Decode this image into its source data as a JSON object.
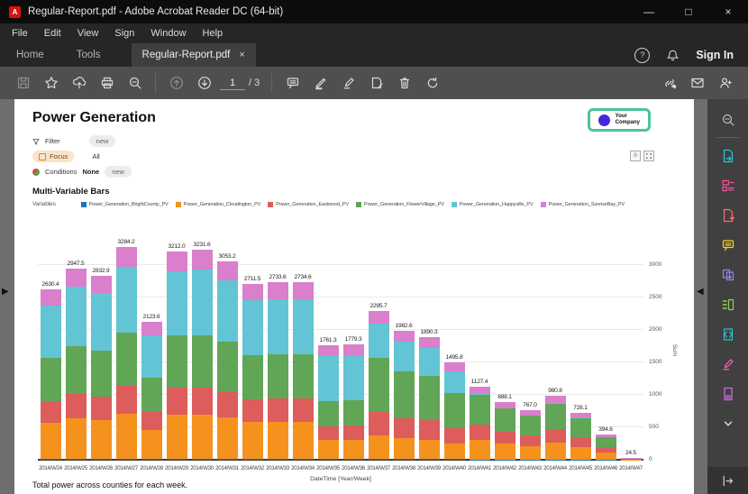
{
  "window": {
    "title": "Regular-Report.pdf - Adobe Acrobat Reader DC (64-bit)",
    "minimize": "—",
    "maximize": "□",
    "close": "×"
  },
  "menubar": {
    "items": [
      "File",
      "Edit",
      "View",
      "Sign",
      "Window",
      "Help"
    ]
  },
  "tabs": {
    "home": "Home",
    "tools": "Tools",
    "document": "Regular-Report.pdf",
    "close": "×"
  },
  "header": {
    "help": "?",
    "sign_in": "Sign In"
  },
  "toolbar": {
    "page_current": "1",
    "page_total": "/ 3",
    "left": [
      {
        "name": "save-button",
        "type": "save",
        "disabled": true
      },
      {
        "name": "favorite-button",
        "type": "star",
        "disabled": false
      },
      {
        "name": "share-upload-button",
        "type": "share",
        "disabled": false
      },
      {
        "name": "print-button",
        "type": "print",
        "disabled": false
      },
      {
        "name": "search-button",
        "type": "search",
        "disabled": false
      }
    ],
    "nav": [
      {
        "name": "previous-page-button",
        "type": "pageup",
        "disabled": true
      },
      {
        "name": "next-page-button",
        "type": "pagedown",
        "disabled": false
      }
    ],
    "annotate": [
      {
        "name": "comment-button",
        "type": "comment",
        "disabled": false
      },
      {
        "name": "highlight-button",
        "type": "highlight",
        "disabled": false
      },
      {
        "name": "fill-sign-button",
        "type": "sign",
        "disabled": false
      },
      {
        "name": "edit-page-button",
        "type": "editpage",
        "disabled": false
      },
      {
        "name": "delete-button",
        "type": "trash",
        "disabled": false
      },
      {
        "name": "rotate-button",
        "type": "rotate",
        "disabled": false
      }
    ],
    "right": [
      {
        "name": "share-link-button",
        "type": "link",
        "disabled": false
      },
      {
        "name": "email-button",
        "type": "email",
        "disabled": false
      },
      {
        "name": "profile-add-button",
        "type": "personadd",
        "disabled": false
      }
    ]
  },
  "sidebar": {
    "tools": [
      {
        "name": "search-tools-button",
        "type": "search",
        "color": "#bdbdbd"
      },
      {
        "name": "export-pdf-button",
        "type": "export",
        "color": "#26c6d8"
      },
      {
        "name": "edit-pdf-button",
        "type": "edit",
        "color": "#ff4fa0"
      },
      {
        "name": "create-pdf-button",
        "type": "create",
        "color": "#ff6b6b"
      },
      {
        "name": "comment-tool-button",
        "type": "comment",
        "color": "#f8d21c"
      },
      {
        "name": "combine-files-button",
        "type": "combine",
        "color": "#8f86f0"
      },
      {
        "name": "organize-pages-button",
        "type": "organize",
        "color": "#8fd14f"
      },
      {
        "name": "compress-pdf-button",
        "type": "compress",
        "color": "#2bc0c9"
      },
      {
        "name": "fill-and-sign-button",
        "type": "sign",
        "color": "#ff63b8"
      },
      {
        "name": "more-tools-button",
        "type": "more",
        "color": "#d569e8"
      }
    ]
  },
  "page": {
    "title": "Power Generation",
    "filters": {
      "filter_label": "Filter",
      "filter_badge": "new",
      "focus_label": "Focus",
      "focus_value": "All",
      "conditions_label": "Conditions",
      "conditions_value": "None",
      "conditions_badge": "new"
    },
    "section_title": "Multi-Variable Bars",
    "variables_label": "Variables",
    "chart_controls": {
      "count": "0"
    },
    "company_badge": {
      "line1": "Your",
      "line2": "Company"
    },
    "caption": "Total power across counties for each week."
  },
  "chart_data": {
    "type": "bar",
    "stacked": true,
    "title": "Multi-Variable Bars",
    "xlabel": "DateTime [Year/Week]",
    "ylabel": "Sum",
    "ylim": [
      0,
      3300
    ],
    "yticks": [
      0,
      500,
      1000,
      1500,
      2000,
      2500,
      3000
    ],
    "grid": true,
    "legend_position": "top",
    "categories": [
      "2014/W24",
      "2014/W25",
      "2014/W26",
      "2014/W27",
      "2014/W28",
      "2014/W29",
      "2014/W30",
      "2014/W31",
      "2014/W32",
      "2014/W33",
      "2014/W34",
      "2014/W35",
      "2014/W36",
      "2014/W37",
      "2014/W38",
      "2014/W39",
      "2014/W40",
      "2014/W41",
      "2014/W42",
      "2014/W43",
      "2014/W44",
      "2014/W45",
      "2014/W46",
      "2014/W47"
    ],
    "totals": [
      2630.4,
      2947.5,
      2832.9,
      3284.2,
      2123.6,
      3212.0,
      3231.6,
      3053.2,
      2711.5,
      2733.6,
      2734.6,
      1761.3,
      1779.3,
      2295.7,
      1982.6,
      1890.3,
      1495.8,
      1127.4,
      888.1,
      767.0,
      980.8,
      728.1,
      394.6,
      24.5
    ],
    "series": [
      {
        "name": "Power_Generation_BrightCounty_PV",
        "color": "#1f77b4",
        "values": [
          13.2,
          14.7,
          14.2,
          16.4,
          10.6,
          16.1,
          16.2,
          15.3,
          13.6,
          13.7,
          13.7,
          8.8,
          8.9,
          11.5,
          9.9,
          9.5,
          7.5,
          5.6,
          4.4,
          3.8,
          4.9,
          3.6,
          2.0,
          0.1
        ]
      },
      {
        "name": "Power_Generation_Cloudington_PV",
        "color": "#f5921e",
        "values": [
          552.4,
          619.0,
          594.9,
          689.7,
          446.0,
          674.5,
          678.6,
          641.2,
          569.4,
          574.1,
          574.3,
          299.4,
          302.5,
          367.3,
          317.2,
          302.4,
          239.3,
          304.4,
          239.8,
          207.1,
          264.8,
          196.6,
          106.5,
          4.0
        ]
      },
      {
        "name": "Power_Generation_Eastwood_PV",
        "color": "#dd5c5c",
        "values": [
          341.9,
          383.2,
          368.3,
          427.0,
          276.1,
          417.6,
          420.1,
          396.9,
          352.5,
          355.4,
          355.5,
          211.4,
          213.5,
          367.3,
          317.2,
          302.4,
          239.3,
          236.8,
          186.5,
          161.1,
          206.0,
          152.9,
          82.9,
          3.0
        ]
      },
      {
        "name": "Power_Generation_FlowerVillage_PV",
        "color": "#61a656",
        "values": [
          657.6,
          736.9,
          708.2,
          821.0,
          530.9,
          803.0,
          807.9,
          763.3,
          677.9,
          683.4,
          683.6,
          387.5,
          391.4,
          826.5,
          713.7,
          680.5,
          538.5,
          451.0,
          355.2,
          306.8,
          392.3,
          291.2,
          157.8,
          5.0
        ]
      },
      {
        "name": "Power_Generation_Happyville_PV",
        "color": "#62c4d4",
        "values": [
          815.4,
          913.7,
          878.2,
          1018.1,
          658.3,
          995.7,
          1001.8,
          946.5,
          840.6,
          847.4,
          847.7,
          686.9,
          693.9,
          528.0,
          456.0,
          434.8,
          344.0,
          11.3,
          8.9,
          7.7,
          9.8,
          7.3,
          3.9,
          2.0
        ]
      },
      {
        "name": "Power_Generation_SunriseBay_PV",
        "color": "#d97fcb",
        "values": [
          249.9,
          280.0,
          269.1,
          312.0,
          201.7,
          305.1,
          307.0,
          290.1,
          257.6,
          259.7,
          259.8,
          167.3,
          169.0,
          195.1,
          168.5,
          160.7,
          127.1,
          118.4,
          93.3,
          80.5,
          103.0,
          76.5,
          41.5,
          10.4
        ]
      }
    ]
  }
}
